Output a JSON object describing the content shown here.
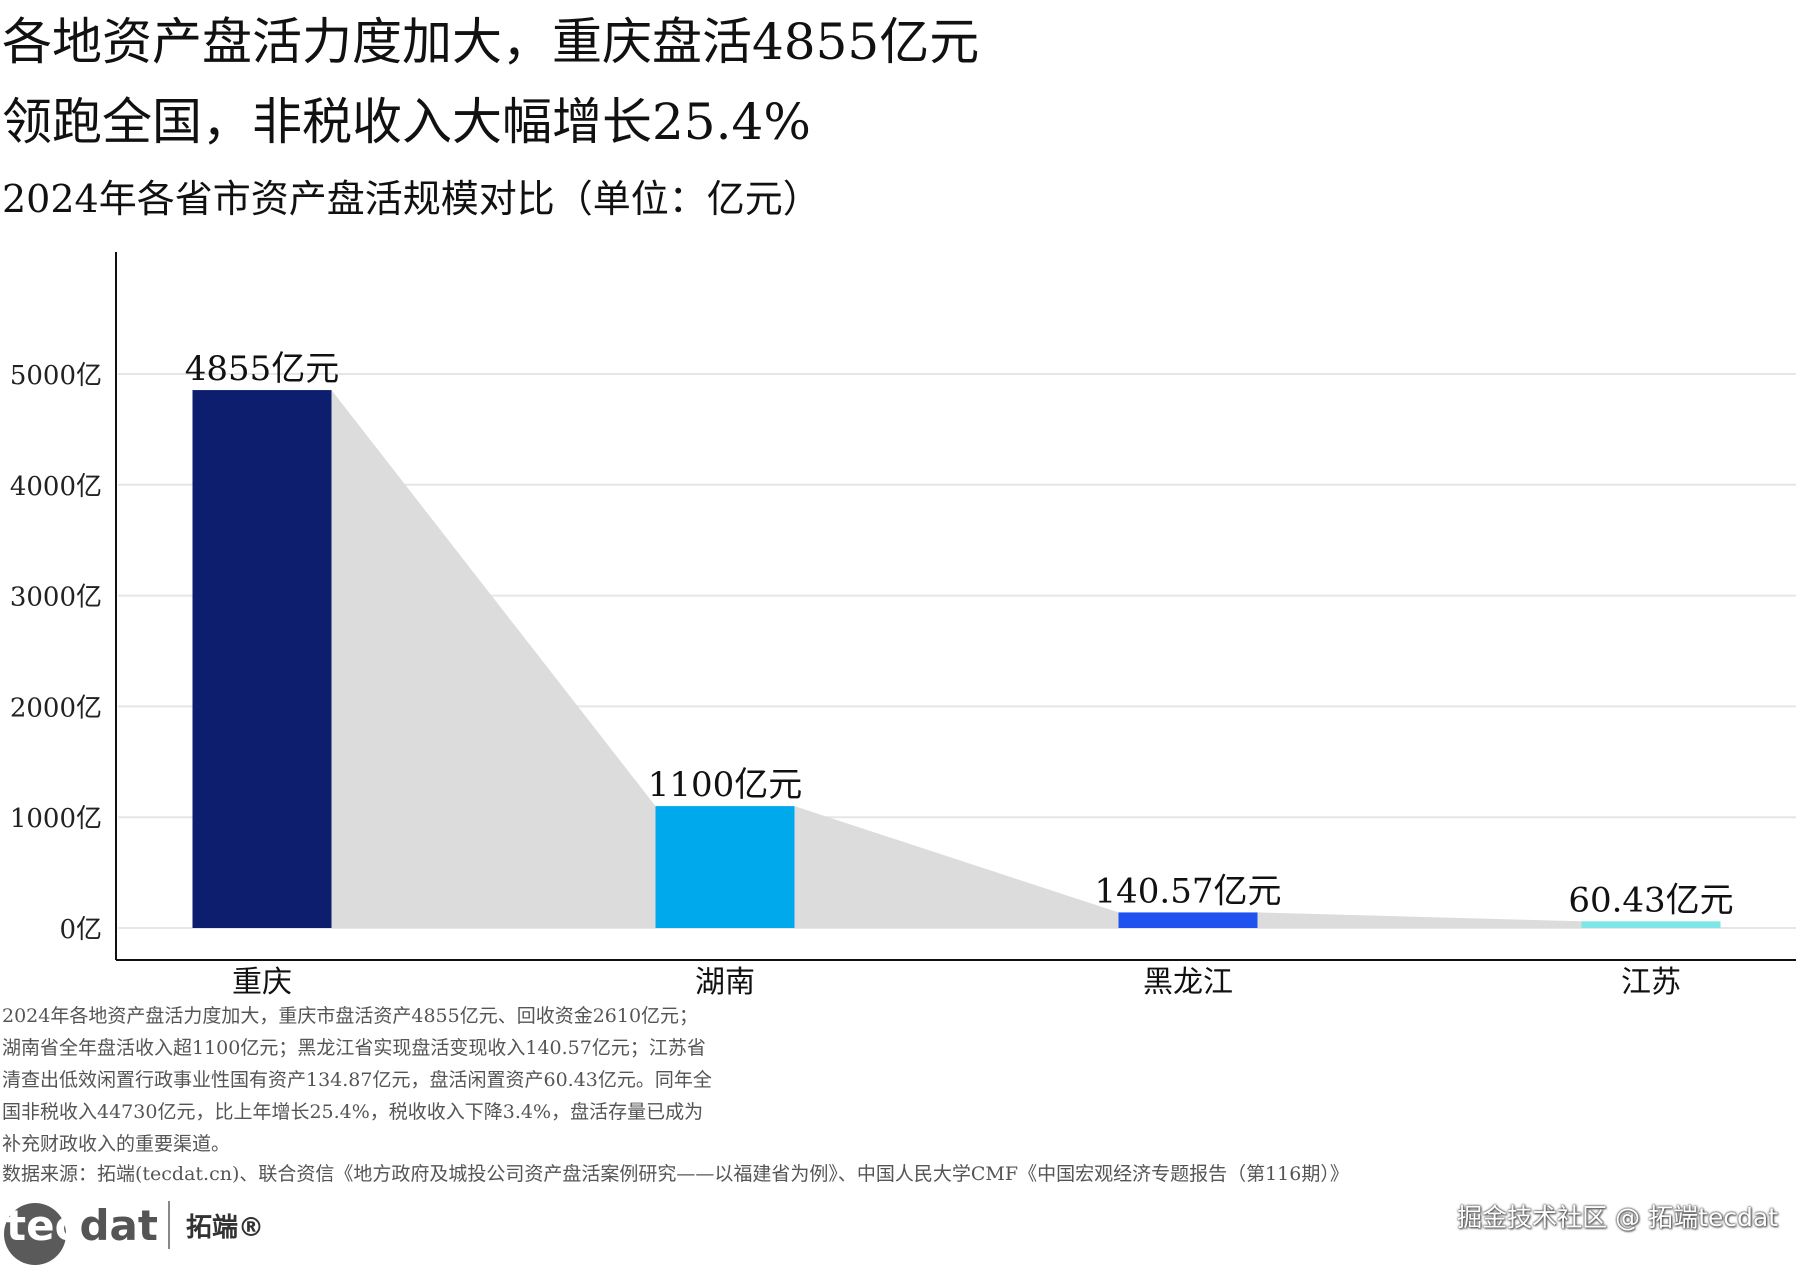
{
  "title": {
    "line1": "各地资产盘活力度加大，重庆盘活4855亿元",
    "line2": "领跑全国，非税收入大幅增长25.4%"
  },
  "subtitle": "2024年各省市资产盘活规模对比（单位：亿元）",
  "chart_data": {
    "type": "bar",
    "title": "2024年各省市资产盘活规模对比（单位：亿元）",
    "categories": [
      "重庆",
      "湖南",
      "黑龙江",
      "江苏"
    ],
    "values": [
      4855,
      1100,
      140.57,
      60.43
    ],
    "data_labels": [
      "4855亿元",
      "1100亿元",
      "140.57亿元",
      "60.43亿元"
    ],
    "bar_colors": [
      "#0d1e6e",
      "#00a8ec",
      "#1f52ee",
      "#7ee6e6"
    ],
    "area_fill": "#dcdcdc",
    "ylim": [
      0,
      5000
    ],
    "y_ticks": [
      0,
      1000,
      2000,
      3000,
      4000,
      5000
    ],
    "y_tick_labels": [
      "0亿",
      "1000亿",
      "2000亿",
      "3000亿",
      "4000亿",
      "5000亿"
    ],
    "xlabel": "",
    "ylabel": "",
    "grid": true,
    "legend": "none"
  },
  "notes": [
    "2024年各地资产盘活力度加大，重庆市盘活资产4855亿元、回收资金2610亿元；",
    "湖南省全年盘活收入超1100亿元；黑龙江省实现盘活变现收入140.57亿元；江苏省",
    "清查出低效闲置行政事业性国有资产134.87亿元，盘活闲置资产60.43亿元。同年全",
    "国非税收入44730亿元，比上年增长25.4%，税收收入下降3.4%，盘活存量已成为",
    "补充财政收入的重要渠道。"
  ],
  "source": "数据来源：拓端(tecdat.cn)、联合资信《地方政府及城投公司资产盘活案例研究——以福建省为例》、中国人民大学CMF《中国宏观经济专题报告（第116期）》",
  "logo": {
    "text_part1": "tec",
    "text_part2": "dat",
    "cn": "拓端®"
  },
  "watermark": "掘金技术社区 @ 拓端tecdat"
}
